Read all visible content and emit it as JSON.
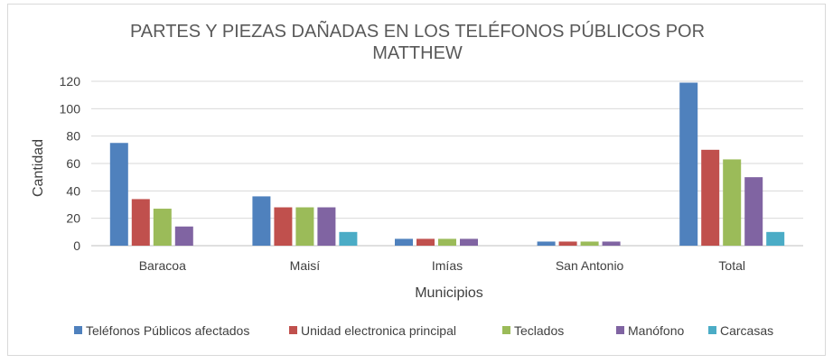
{
  "chart_data": {
    "type": "bar",
    "title_lines": [
      "PARTES Y PIEZAS DAÑADAS EN LOS TELÉFONOS PÚBLICOS POR",
      "MATTHEW"
    ],
    "xlabel": "Municipios",
    "ylabel": "Cantidad",
    "ylim": [
      0,
      120
    ],
    "yticks": [
      0,
      20,
      40,
      60,
      80,
      100,
      120
    ],
    "grid": true,
    "legend_position": "bottom",
    "categories": [
      "Baracoa",
      "Maisí",
      "Imías",
      "San Antonio",
      "Total"
    ],
    "series": [
      {
        "name": "Teléfonos Públicos afectados",
        "color": "#4f81bd",
        "values": [
          75,
          36,
          5,
          3,
          119
        ]
      },
      {
        "name": "Unidad electronica principal",
        "color": "#c0504d",
        "values": [
          34,
          28,
          5,
          3,
          70
        ]
      },
      {
        "name": "Teclados",
        "color": "#9bbb59",
        "values": [
          27,
          28,
          5,
          3,
          63
        ]
      },
      {
        "name": "Manófono",
        "color": "#8064a2",
        "values": [
          14,
          28,
          5,
          3,
          50
        ]
      },
      {
        "name": "Carcasas",
        "color": "#4bacc6",
        "values": [
          0,
          10,
          0,
          0,
          10
        ]
      }
    ]
  }
}
